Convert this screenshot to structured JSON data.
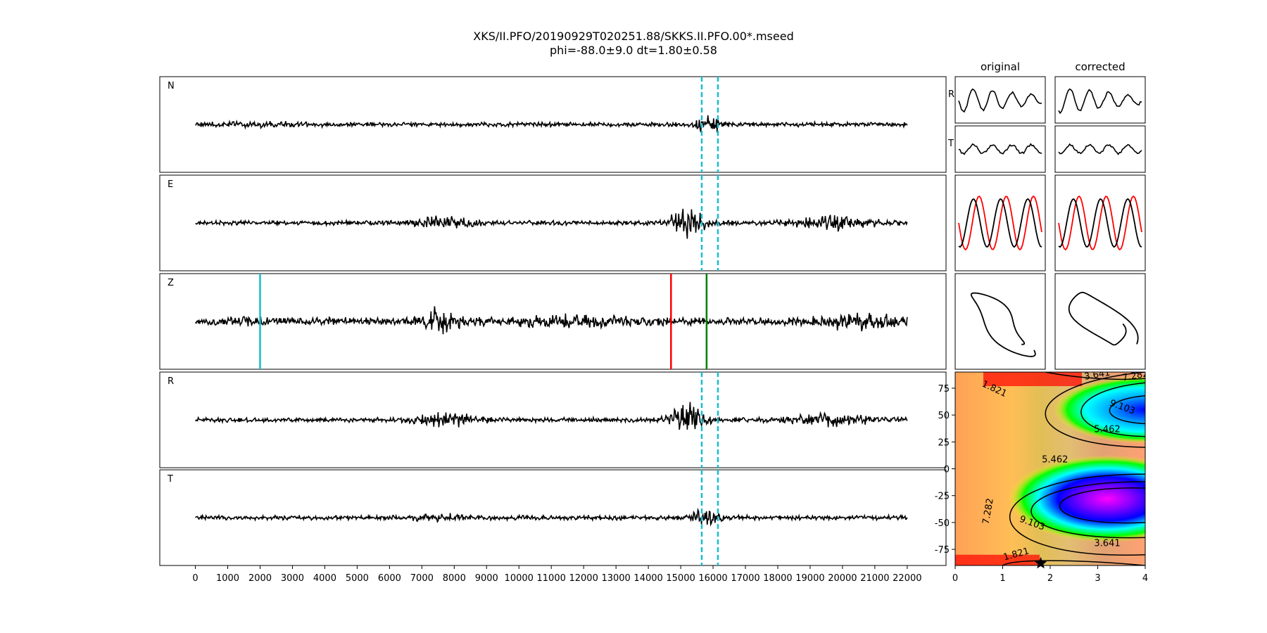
{
  "title": {
    "line1": "XKS/II.PFO/20190929T020251.88/SKKS.II.PFO.00*.mseed",
    "line2": "phi=-88.0±9.0 dt=1.80±0.58"
  },
  "chart_data": [
    {
      "type": "line",
      "panel": "waveforms",
      "traces": [
        "N",
        "E",
        "Z",
        "R",
        "T"
      ],
      "x_ticks": [
        0,
        1000,
        2000,
        3000,
        4000,
        5000,
        6000,
        7000,
        8000,
        9000,
        10000,
        11000,
        12000,
        13000,
        14000,
        15000,
        16000,
        17000,
        18000,
        19000,
        20000,
        21000,
        22000
      ],
      "xlim": [
        -1100,
        23200
      ],
      "data_extent": [
        0,
        22000
      ],
      "window_lines": {
        "traces": [
          "N",
          "E",
          "R",
          "T"
        ],
        "x": [
          15650,
          16150
        ],
        "color": "#17becf",
        "style": "dashed"
      },
      "picks": [
        {
          "trace": "Z",
          "x": 2000,
          "color": "#17becf"
        },
        {
          "trace": "Z",
          "x": 14700,
          "color": "#ff0000"
        },
        {
          "trace": "Z",
          "x": 15800,
          "color": "#008000"
        }
      ]
    },
    {
      "type": "line",
      "panel": "particle-motion",
      "columns": [
        "original",
        "corrected"
      ],
      "rows": [
        "R",
        "T"
      ],
      "overlay_colors": [
        "#ff0000",
        "#000000"
      ]
    },
    {
      "type": "heatmap",
      "panel": "error-surface",
      "xlim": [
        0,
        4
      ],
      "ylim": [
        -90,
        90
      ],
      "x_ticks": [
        0,
        1,
        2,
        3,
        4
      ],
      "y_ticks": [
        -75,
        -50,
        -25,
        0,
        25,
        50,
        75
      ],
      "contour_labels": [
        "1.821",
        "3.641",
        "5.462",
        "7.282",
        "9.103"
      ],
      "minimum": {
        "dt": 1.8,
        "phi": -88.0
      }
    }
  ]
}
